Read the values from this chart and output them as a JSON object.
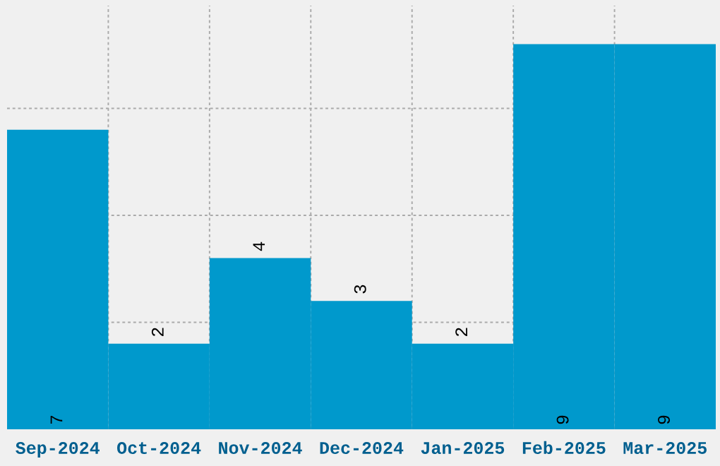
{
  "chart_data": {
    "type": "bar",
    "categories": [
      "Sep-2024",
      "Oct-2024",
      "Nov-2024",
      "Dec-2024",
      "Jan-2025",
      "Feb-2025",
      "Mar-2025"
    ],
    "values": [
      7,
      2,
      4,
      3,
      2,
      9,
      9
    ],
    "color": "#0099cc",
    "grid": true,
    "data_labels": true,
    "tick_labels": "x"
  }
}
